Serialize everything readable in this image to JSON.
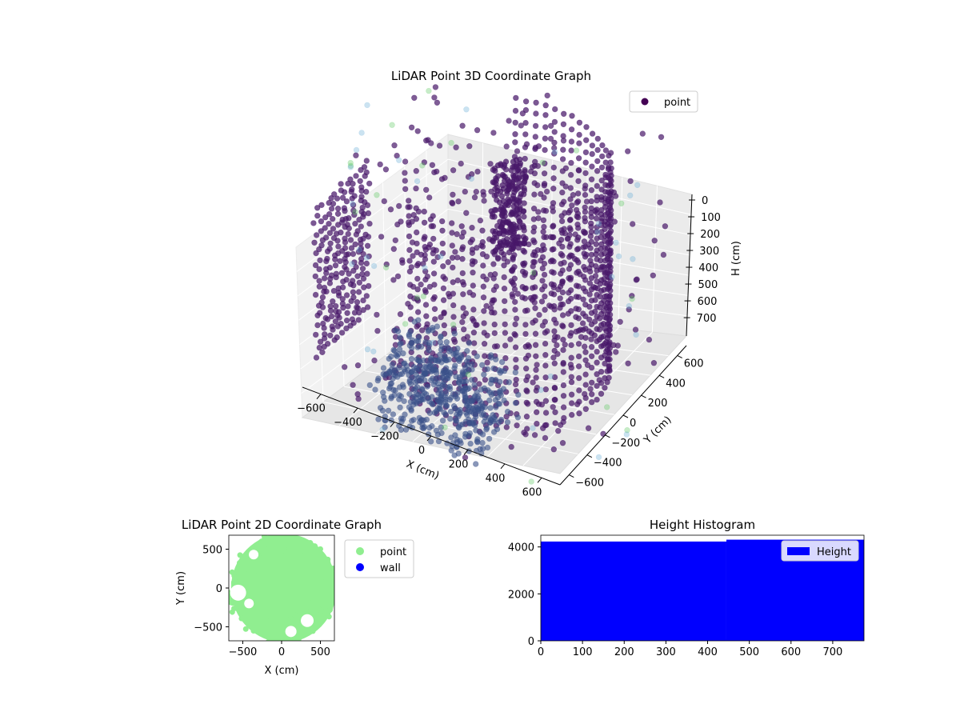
{
  "chart_data": [
    {
      "type": "scatter",
      "subtype": "3d",
      "title": "LiDAR Point 3D Coordinate Graph",
      "xlabel": "X (cm)",
      "ylabel": "Y (cm)",
      "zlabel": "H (cm)",
      "xlim": [
        -700,
        700
      ],
      "ylim": [
        -700,
        700
      ],
      "zlim": [
        775,
        0
      ],
      "xticks": [
        "−600",
        "−400",
        "−200",
        "0",
        "200",
        "400",
        "600"
      ],
      "yticks": [
        "−600",
        "−400",
        "−200",
        "0",
        "200",
        "400",
        "600"
      ],
      "zticks": [
        "0",
        "100",
        "200",
        "300",
        "400",
        "500",
        "600",
        "700"
      ],
      "grid": true,
      "legend": {
        "placement": "top-right",
        "entries": [
          {
            "name": "point",
            "color": "#440154"
          }
        ]
      },
      "colormap": "viridis",
      "color_dark": "#48186a",
      "color_mid": "#3b528b",
      "color_light": "#5ec962",
      "series": [
        {
          "name": "point"
        }
      ]
    },
    {
      "type": "scatter",
      "title": "LiDAR Point 2D Coordinate Graph",
      "xlabel": "X (cm)",
      "ylabel": "Y (cm)",
      "xlim": [
        -680,
        680
      ],
      "ylim": [
        -680,
        680
      ],
      "xticks": [
        "−500",
        "0",
        "500"
      ],
      "yticks": [
        "−500",
        "0",
        "500"
      ],
      "legend": {
        "placement": "outside-right",
        "entries": [
          {
            "name": "point",
            "color": "#90ee90"
          },
          {
            "name": "wall",
            "color": "#0000ff"
          }
        ]
      },
      "series": [
        {
          "name": "point",
          "color": "#90ee90"
        },
        {
          "name": "wall",
          "color": "#0000ff"
        }
      ]
    },
    {
      "type": "bar",
      "subtype": "histogram",
      "title": "Height Histogram",
      "xlim": [
        0,
        775
      ],
      "ylim": [
        0,
        4500
      ],
      "xticks": [
        "0",
        "100",
        "200",
        "300",
        "400",
        "500",
        "600",
        "700"
      ],
      "yticks": [
        "0",
        "2000",
        "4000"
      ],
      "legend": {
        "placement": "top-right",
        "entries": [
          {
            "name": "Height",
            "color": "#0000ff"
          }
        ]
      },
      "bins": [
        {
          "x0": 0,
          "x1": 445,
          "count": 4230
        },
        {
          "x0": 445,
          "x1": 775,
          "count": 4310
        }
      ],
      "series": [
        {
          "name": "Height",
          "color": "#0000ff"
        }
      ]
    }
  ]
}
